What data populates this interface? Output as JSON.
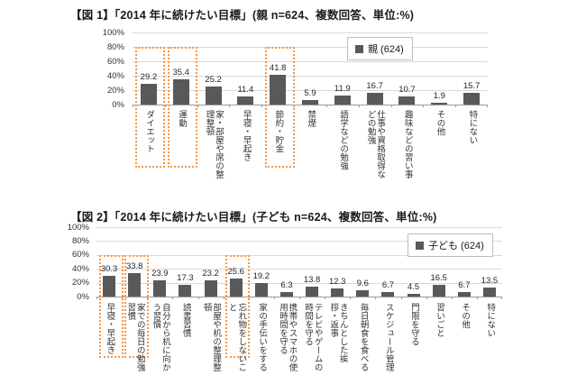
{
  "colors": {
    "bar": "#595959",
    "grid": "#d9d9d9",
    "axis": "#9a9a9a",
    "highlight_box": "#f79646",
    "text": "#333333",
    "legend_border": "#bdbdbd"
  },
  "chart_data": [
    {
      "type": "bar",
      "title": "【図 1】「2014 年に続けたい目標」(親 n=624、複数回答、単位:%)",
      "legend_label": "親 (624)",
      "unit": "%",
      "ylim": [
        0,
        100
      ],
      "y_tick_labels": [
        "100%",
        "80%",
        "60%",
        "40%",
        "20%",
        "0%"
      ],
      "grid": true,
      "legend_position": "inside-top-right",
      "categories": [
        "ダイエット",
        "運動",
        "家・部屋や席の整理整頓",
        "早寝・早起き",
        "節約・貯金",
        "禁煙",
        "語学などの勉強",
        "仕事や資格取得などの勉強",
        "趣味などの習い事",
        "その他",
        "特にない"
      ],
      "values": [
        29.2,
        35.4,
        25.2,
        11.4,
        41.8,
        5.9,
        11.9,
        16.7,
        10.7,
        1.9,
        15.7
      ],
      "highlighted_indexes": [
        0,
        1,
        4
      ],
      "highlighted_categories": [
        "ダイエット",
        "運動",
        "節約・貯金"
      ]
    },
    {
      "type": "bar",
      "title": "【図 2】「2014 年に続けたい目標」(子ども n=624、複数回答、単位:%)",
      "legend_label": "子ども (624)",
      "unit": "%",
      "ylim": [
        0,
        100
      ],
      "y_tick_labels": [
        "100%",
        "80%",
        "60%",
        "40%",
        "20%",
        "0%"
      ],
      "grid": true,
      "legend_position": "inside-top-right",
      "categories": [
        "早寝・早起き",
        "家での毎日の勉強習慣",
        "自分から机に向かう習慣",
        "読書習慣",
        "部屋や机の整理整頓",
        "忘れ物をしないこと",
        "家の手伝いをする",
        "携帯やスマホの使用時間を守る",
        "テレビやゲームの時間を守る",
        "きちんとした挨拶・返事",
        "毎日朝食を食べる",
        "スケジュール管理",
        "門限を守る",
        "習いごと",
        "その他",
        "特にない"
      ],
      "values": [
        30.3,
        33.8,
        23.9,
        17.3,
        23.2,
        25.6,
        19.2,
        6.3,
        13.8,
        12.3,
        9.6,
        6.7,
        4.5,
        16.5,
        6.7,
        13.5
      ],
      "highlighted_indexes": [
        0,
        1,
        5
      ],
      "highlighted_categories": [
        "早寝・早起き",
        "家での毎日の勉強習慣",
        "忘れ物をしないこと"
      ]
    }
  ]
}
